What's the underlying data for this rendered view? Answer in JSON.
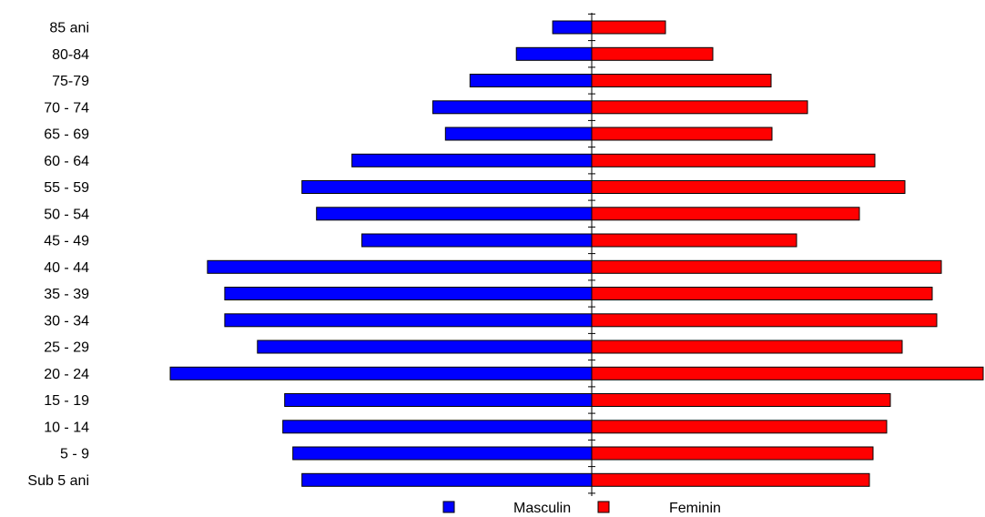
{
  "chart_data": {
    "type": "bar",
    "orientation": "horizontal",
    "layout": "population-pyramid",
    "categories": [
      "85 ani",
      "80-84",
      "75-79",
      "70 - 74",
      "65 - 69",
      "60 - 64",
      "55 - 59",
      "50 - 54",
      "45 - 49",
      "40 - 44",
      "35 - 39",
      "30 - 34",
      "25 - 29",
      "20 - 24",
      "15 - 19",
      "10 - 14",
      "5 - 9",
      "Sub 5 ani"
    ],
    "series": [
      {
        "name": "Masculin",
        "color": "#0000ff",
        "side": "left",
        "values": [
          43,
          83,
          134,
          175,
          161,
          264,
          319,
          303,
          253,
          423,
          404,
          404,
          368,
          464,
          338,
          340,
          329,
          319
        ]
      },
      {
        "name": "Feminin",
        "color": "#ff0000",
        "side": "right",
        "values": [
          81,
          133,
          197,
          237,
          198,
          311,
          344,
          294,
          225,
          384,
          374,
          379,
          341,
          430,
          328,
          324,
          309,
          305
        ]
      }
    ],
    "xlim": [
      -464,
      431
    ],
    "legend_position": "bottom-center",
    "grid": false
  }
}
